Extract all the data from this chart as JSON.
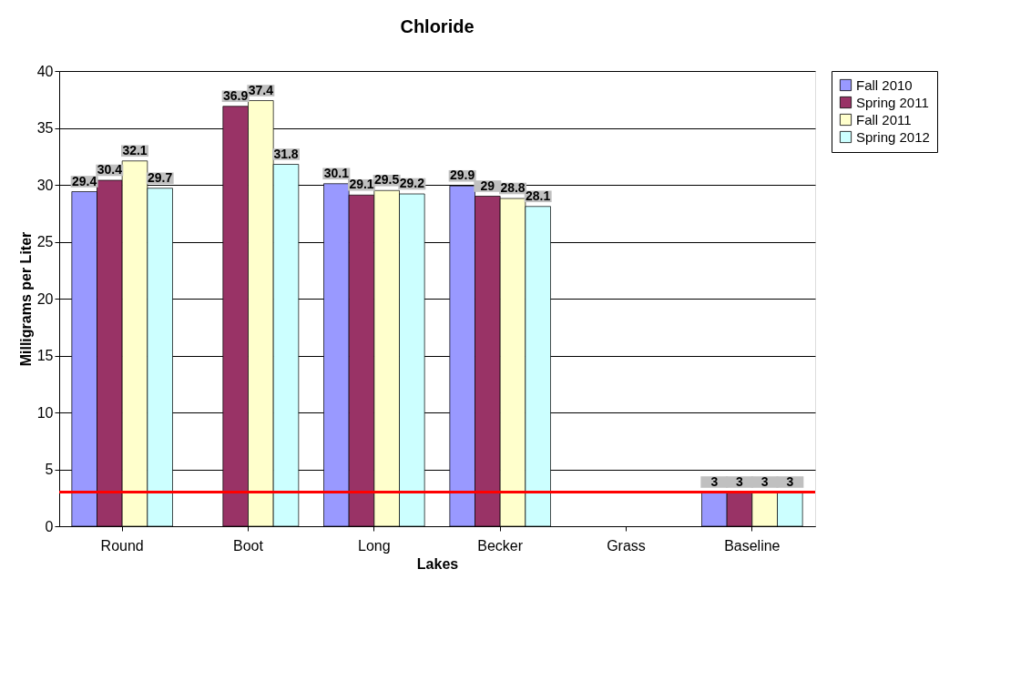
{
  "chart_data": {
    "type": "bar",
    "title": "Chloride",
    "xlabel": "Lakes",
    "ylabel": "Milligrams per Liter",
    "categories": [
      "Round",
      "Boot",
      "Long",
      "Becker",
      "Grass",
      "Baseline"
    ],
    "series": [
      {
        "name": "Fall 2010",
        "color": "#9999ff",
        "values": [
          29.4,
          null,
          30.1,
          29.9,
          null,
          3
        ]
      },
      {
        "name": "Spring 2011",
        "color": "#993366",
        "values": [
          30.4,
          36.9,
          29.1,
          29,
          null,
          3
        ]
      },
      {
        "name": "Fall 2011",
        "color": "#ffffcc",
        "values": [
          32.1,
          37.4,
          29.5,
          28.8,
          null,
          3
        ]
      },
      {
        "name": "Spring 2012",
        "color": "#ccffff",
        "values": [
          29.7,
          31.8,
          29.2,
          28.1,
          null,
          3
        ]
      }
    ],
    "ylim": [
      0,
      40
    ],
    "yticks": [
      0,
      5,
      10,
      15,
      20,
      25,
      30,
      35,
      40
    ],
    "grid": "y",
    "legend": "right",
    "data_labels": true,
    "ref_lines": [
      {
        "axis": "y",
        "value": 3,
        "color": "#ff0000"
      }
    ]
  }
}
